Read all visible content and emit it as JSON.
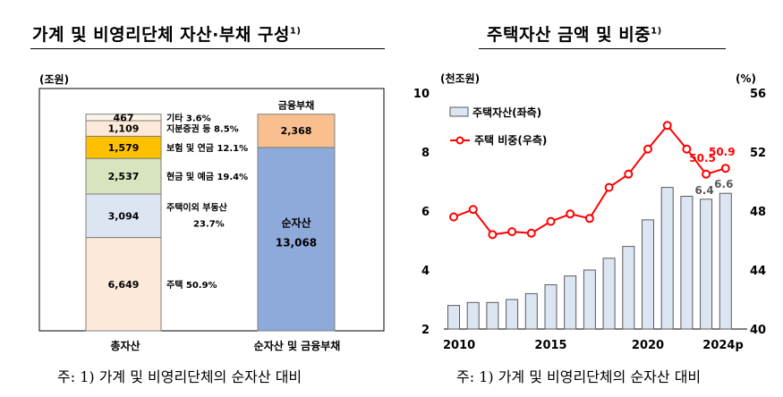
{
  "left": {
    "title": "가계 및 비영리단체 자산·부채 구성",
    "title_sup": "1)",
    "unit": "(조원)",
    "note": "주: 1) 가계 및 비영리단체의 순자산 대비",
    "colors": {
      "housing": "#fde9d9",
      "other_realestate": "#dce6f2",
      "cash": "#d7e4bd",
      "insurance": "#ffc000",
      "securities": "#fde9d9",
      "other": "#fdf5e6",
      "financial_debt": "#fabf8f",
      "net_assets": "#8eaadb"
    },
    "chart_data": {
      "type": "bar",
      "stacked": true,
      "categories": [
        "총자산",
        "순자산 및 금융부채"
      ],
      "total_assets": [
        {
          "key": "housing",
          "value": 6649,
          "value_label": "6,649",
          "label": "주택 50.9%"
        },
        {
          "key": "other_realestate",
          "value": 3094,
          "value_label": "3,094",
          "label": "주택이외 부동산",
          "label2": "23.7%"
        },
        {
          "key": "cash",
          "value": 2537,
          "value_label": "2,537",
          "label": "현금 및 예금 19.4%"
        },
        {
          "key": "insurance",
          "value": 1579,
          "value_label": "1,579",
          "label": "보험 및 연금 12.1%"
        },
        {
          "key": "securities",
          "value": 1109,
          "value_label": "1,109",
          "label": "지분증권 등 8.5%"
        },
        {
          "key": "other",
          "value": 467,
          "value_label": "467",
          "label": "기타 3.6%"
        }
      ],
      "net_and_debt": [
        {
          "key": "net_assets",
          "value": 13068,
          "value_label": "13,068",
          "label": "순자산"
        },
        {
          "key": "financial_debt",
          "value": 2368,
          "value_label": "2,368",
          "label": "금융부채"
        }
      ]
    }
  },
  "right": {
    "title": "주택자산 금액 및 비중",
    "title_sup": "1)",
    "y_left_unit": "(천조원)",
    "y_right_unit": "(%)",
    "note": "주: 1) 가계 및 비영리단체의 순자산 대비",
    "colors": {
      "bar_fill": "#dce6f2",
      "bar_edge": "#595959",
      "line": "#ff0000",
      "marker_fill": "#ffffff",
      "value_label": "#ff0000"
    },
    "chart_data": {
      "type": "bar+line",
      "x": [
        2010,
        2011,
        2012,
        2013,
        2014,
        2015,
        2016,
        2017,
        2018,
        2019,
        2020,
        2021,
        2022,
        2023,
        2024
      ],
      "x_tick_labels": [
        "2010",
        "",
        "",
        "",
        "",
        "2015",
        "",
        "",
        "",
        "",
        "2020",
        "",
        "",
        "",
        "2024p"
      ],
      "series": [
        {
          "name": "주택자산(좌측)",
          "axis": "left",
          "kind": "bar",
          "values": [
            2.8,
            2.9,
            2.9,
            3.0,
            3.2,
            3.5,
            3.8,
            4.0,
            4.4,
            4.8,
            5.7,
            6.8,
            6.5,
            6.4,
            6.6
          ]
        },
        {
          "name": "주택 비중(우측)",
          "axis": "right",
          "kind": "line",
          "values": [
            47.6,
            48.1,
            46.4,
            46.6,
            46.5,
            47.3,
            47.8,
            47.5,
            49.6,
            50.5,
            52.2,
            53.8,
            52.2,
            50.5,
            50.9
          ]
        }
      ],
      "annotations": [
        {
          "series": 1,
          "index": 13,
          "text": "50.5"
        },
        {
          "series": 1,
          "index": 14,
          "text": "50.9"
        },
        {
          "series": 0,
          "index": 13,
          "text": "6.4"
        },
        {
          "series": 0,
          "index": 14,
          "text": "6.6"
        }
      ],
      "y_left": {
        "min": 2,
        "max": 10,
        "ticks": [
          "2",
          "4",
          "6",
          "8",
          "10"
        ]
      },
      "y_right": {
        "min": 40,
        "max": 56,
        "ticks": [
          "40",
          "44",
          "48",
          "52",
          "56"
        ]
      },
      "legend_position": "top-left"
    }
  }
}
